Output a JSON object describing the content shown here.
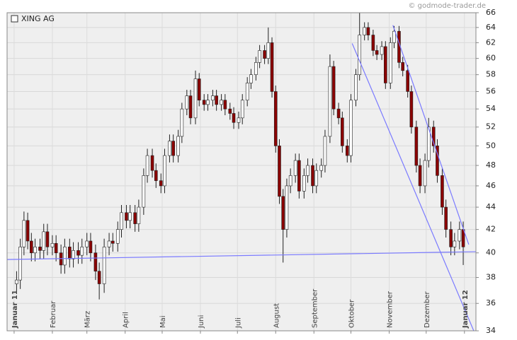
{
  "chart_data": {
    "type": "candlestick",
    "title": "XING AG",
    "source": "© godmode-trader.de",
    "log_scale": true,
    "grid": true,
    "up_color": "#ffffff",
    "down_color": "#8b0000",
    "line_color": "#7a7aff",
    "xlim": [
      -5.7,
      374.3
    ],
    "ylim": [
      34,
      66
    ],
    "yticks": [
      34,
      36,
      38,
      40,
      42,
      44,
      46,
      48,
      50,
      52,
      54,
      56,
      58,
      60,
      62,
      64,
      66
    ],
    "xticks": [
      {
        "value": 0,
        "label": "Januar 11"
      },
      {
        "value": 31,
        "label": "Februar"
      },
      {
        "value": 59,
        "label": "März"
      },
      {
        "value": 90,
        "label": "April"
      },
      {
        "value": 120,
        "label": "Mai"
      },
      {
        "value": 151,
        "label": "Juni"
      },
      {
        "value": 181,
        "label": "Juli"
      },
      {
        "value": 212,
        "label": "August"
      },
      {
        "value": 243,
        "label": "September"
      },
      {
        "value": 273,
        "label": "Oktober"
      },
      {
        "value": 304,
        "label": "November"
      },
      {
        "value": 334,
        "label": "Dezember"
      },
      {
        "value": 365,
        "label": "Januar 12"
      }
    ],
    "x": [
      2,
      5,
      8,
      11,
      14,
      17,
      21,
      24,
      27,
      31,
      34,
      38,
      41,
      45,
      48,
      52,
      55,
      59,
      62,
      66,
      69,
      73,
      77,
      80,
      84,
      87,
      91,
      94,
      98,
      101,
      105,
      108,
      112,
      115,
      119,
      122,
      126,
      129,
      133,
      136,
      140,
      143,
      147,
      150,
      154,
      157,
      161,
      164,
      168,
      171,
      175,
      178,
      182,
      185,
      189,
      192,
      196,
      199,
      203,
      206,
      209,
      212,
      215,
      218,
      221,
      224,
      228,
      231,
      235,
      238,
      242,
      245,
      249,
      252,
      256,
      259,
      263,
      266,
      270,
      273,
      277,
      280,
      284,
      287,
      291,
      294,
      298,
      301,
      305,
      308,
      312,
      315,
      319,
      322,
      326,
      329,
      333,
      336,
      340,
      343,
      347,
      350,
      354,
      357,
      361,
      364
    ],
    "open": [
      37.5,
      37.8,
      40.5,
      42.8,
      41,
      40,
      40.5,
      40.2,
      41.8,
      40.5,
      40.8,
      40,
      39,
      40.5,
      39.5,
      40.2,
      39.8,
      40.5,
      41,
      40,
      38.5,
      37.5,
      40.5,
      41,
      40.8,
      42,
      43.5,
      42.8,
      43.5,
      42.5,
      44,
      47,
      49,
      47.5,
      46.5,
      46,
      49,
      50.5,
      49,
      51,
      54,
      55.5,
      53,
      57.5,
      55,
      54.5,
      55,
      55.5,
      54.5,
      55,
      54,
      53.5,
      52.5,
      53,
      55,
      57,
      58,
      59.5,
      61,
      60,
      62,
      56,
      50,
      45,
      42,
      46,
      47,
      48.5,
      45.5,
      47,
      48,
      46,
      47.5,
      48,
      51,
      59,
      54,
      53,
      50,
      49,
      55,
      58,
      63,
      64,
      63,
      61,
      60.5,
      61.5,
      57,
      62,
      63.5,
      59.5,
      58.5,
      56,
      52,
      48,
      46,
      48.5,
      52,
      50,
      47,
      44,
      42,
      40.5,
      41,
      42
    ],
    "high": [
      38.5,
      41.2,
      43.6,
      43.5,
      41.7,
      41.2,
      41.2,
      42.5,
      42.5,
      41.5,
      41.5,
      40.7,
      41.2,
      41.2,
      40.9,
      40.9,
      41.2,
      41.7,
      41.7,
      40.7,
      39.2,
      41.2,
      41.7,
      41.7,
      42.7,
      44.2,
      44.2,
      44.2,
      44.2,
      44.7,
      47.7,
      49.7,
      49.7,
      48.2,
      47.2,
      49.7,
      51.2,
      51.2,
      51.7,
      54.7,
      56.2,
      56.2,
      58.5,
      58.2,
      55.7,
      55.7,
      56.2,
      56.2,
      55.7,
      55.7,
      54.7,
      54.2,
      53.7,
      55.7,
      57.7,
      58.7,
      60.2,
      61.7,
      61.7,
      64,
      62.7,
      56.7,
      50.7,
      45.7,
      46.7,
      47.7,
      49.2,
      49.2,
      47.7,
      48.7,
      48.7,
      48.2,
      48.7,
      51.7,
      60.5,
      59.7,
      54.7,
      53.7,
      50.7,
      55.7,
      58.7,
      66,
      64.7,
      64.7,
      63.7,
      61.7,
      62.2,
      62.2,
      62.7,
      64.2,
      64.2,
      60.2,
      59.2,
      56.7,
      52.7,
      48.7,
      49.2,
      53,
      52.7,
      50.7,
      47.7,
      44.7,
      42.7,
      41.7,
      42.7,
      42.7
    ],
    "low": [
      36.8,
      37.1,
      39.8,
      40.3,
      39.3,
      39.3,
      39.5,
      39.5,
      39.8,
      39.8,
      39.3,
      38.3,
      38.3,
      38.8,
      38.8,
      39.1,
      39.1,
      39.8,
      39.3,
      37.8,
      36.3,
      36.8,
      39.8,
      40.1,
      40.1,
      41.3,
      42.1,
      42.1,
      41.8,
      41.8,
      43.3,
      46.3,
      46.8,
      45.8,
      45.3,
      45.3,
      48.3,
      48.3,
      48.3,
      50.3,
      53.3,
      52.3,
      52.3,
      54.3,
      53.8,
      53.8,
      54.3,
      53.8,
      53.8,
      53.3,
      52.8,
      51.8,
      51.8,
      52.3,
      54.3,
      56.3,
      57.3,
      58.8,
      59.3,
      59.3,
      55.3,
      49.3,
      44.3,
      39.2,
      41.3,
      45.3,
      46.3,
      44.8,
      44.8,
      46.3,
      45.3,
      45.3,
      46.8,
      47.3,
      50.3,
      53.3,
      52.3,
      49.3,
      48.3,
      48.3,
      54.3,
      57.3,
      62.3,
      62.3,
      60.3,
      59.8,
      59.8,
      56.3,
      56.3,
      61.3,
      58.8,
      57.8,
      55.3,
      51.3,
      47.3,
      45.3,
      45.3,
      47.8,
      49.3,
      46.3,
      43.3,
      41.3,
      39.8,
      39.8,
      40.3,
      39
    ],
    "close": [
      37.8,
      40.5,
      42.8,
      41,
      40,
      40.5,
      40.2,
      41.8,
      40.5,
      40.8,
      40,
      39,
      40.5,
      39.5,
      40.2,
      39.8,
      40.5,
      41,
      40,
      38.5,
      37.5,
      40.5,
      41,
      40.8,
      42,
      43.5,
      42.8,
      43.5,
      42.5,
      44,
      47,
      49,
      47.5,
      46.5,
      46,
      49,
      50.5,
      49,
      51,
      54,
      55.5,
      53,
      57.5,
      55,
      54.5,
      55,
      55.5,
      54.5,
      55,
      54,
      53.5,
      52.5,
      53,
      55,
      57,
      58,
      59.5,
      61,
      60,
      62,
      56,
      50,
      45,
      42,
      46,
      47,
      48.5,
      45.5,
      47,
      48,
      46,
      47.5,
      48,
      51,
      59,
      54,
      53,
      50,
      49,
      55,
      58,
      63,
      64,
      63,
      61,
      60.5,
      61.5,
      57,
      62,
      63.5,
      59.5,
      58.5,
      56,
      52,
      48,
      46,
      48.5,
      52,
      50,
      47,
      44,
      42,
      40.5,
      41,
      42,
      40.5
    ],
    "trend_lines": [
      {
        "x": [
          -5.7,
          374.3
        ],
        "y": [
          39.45,
          40.1
        ]
      },
      {
        "x": [
          274,
          374
        ],
        "y": [
          61.9,
          33.7
        ]
      },
      {
        "x": [
          307,
          368.5
        ],
        "y": [
          64.3,
          40.7
        ]
      }
    ]
  }
}
